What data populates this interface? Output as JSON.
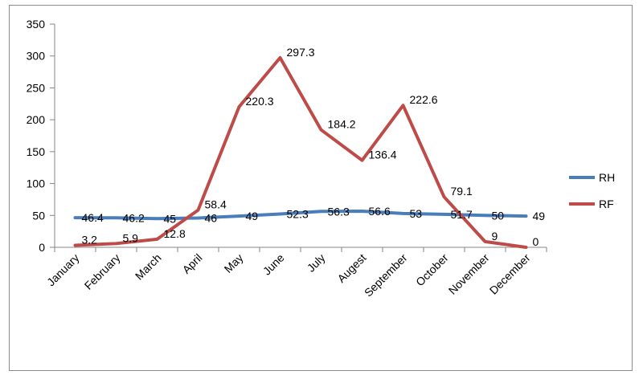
{
  "chart_data": {
    "type": "line",
    "categories": [
      "January",
      "February",
      "March",
      "April",
      "May",
      "June",
      "July",
      "Augest",
      "September",
      "October",
      "November",
      "December"
    ],
    "series": [
      {
        "name": "RH",
        "color": "#4a7ebb",
        "values": [
          46.4,
          46.2,
          45,
          46,
          49,
          52.3,
          56.3,
          56.6,
          53,
          51.7,
          50,
          49
        ]
      },
      {
        "name": "RF",
        "color": "#be4b48",
        "values": [
          3.2,
          5.9,
          12.8,
          58.4,
          220.3,
          297.3,
          184.2,
          136.4,
          222.6,
          79.1,
          9,
          0
        ]
      }
    ],
    "ylim": [
      0,
      350
    ],
    "yticks": [
      0,
      50,
      100,
      150,
      200,
      250,
      300,
      350
    ],
    "grid": false,
    "legend": "right"
  }
}
